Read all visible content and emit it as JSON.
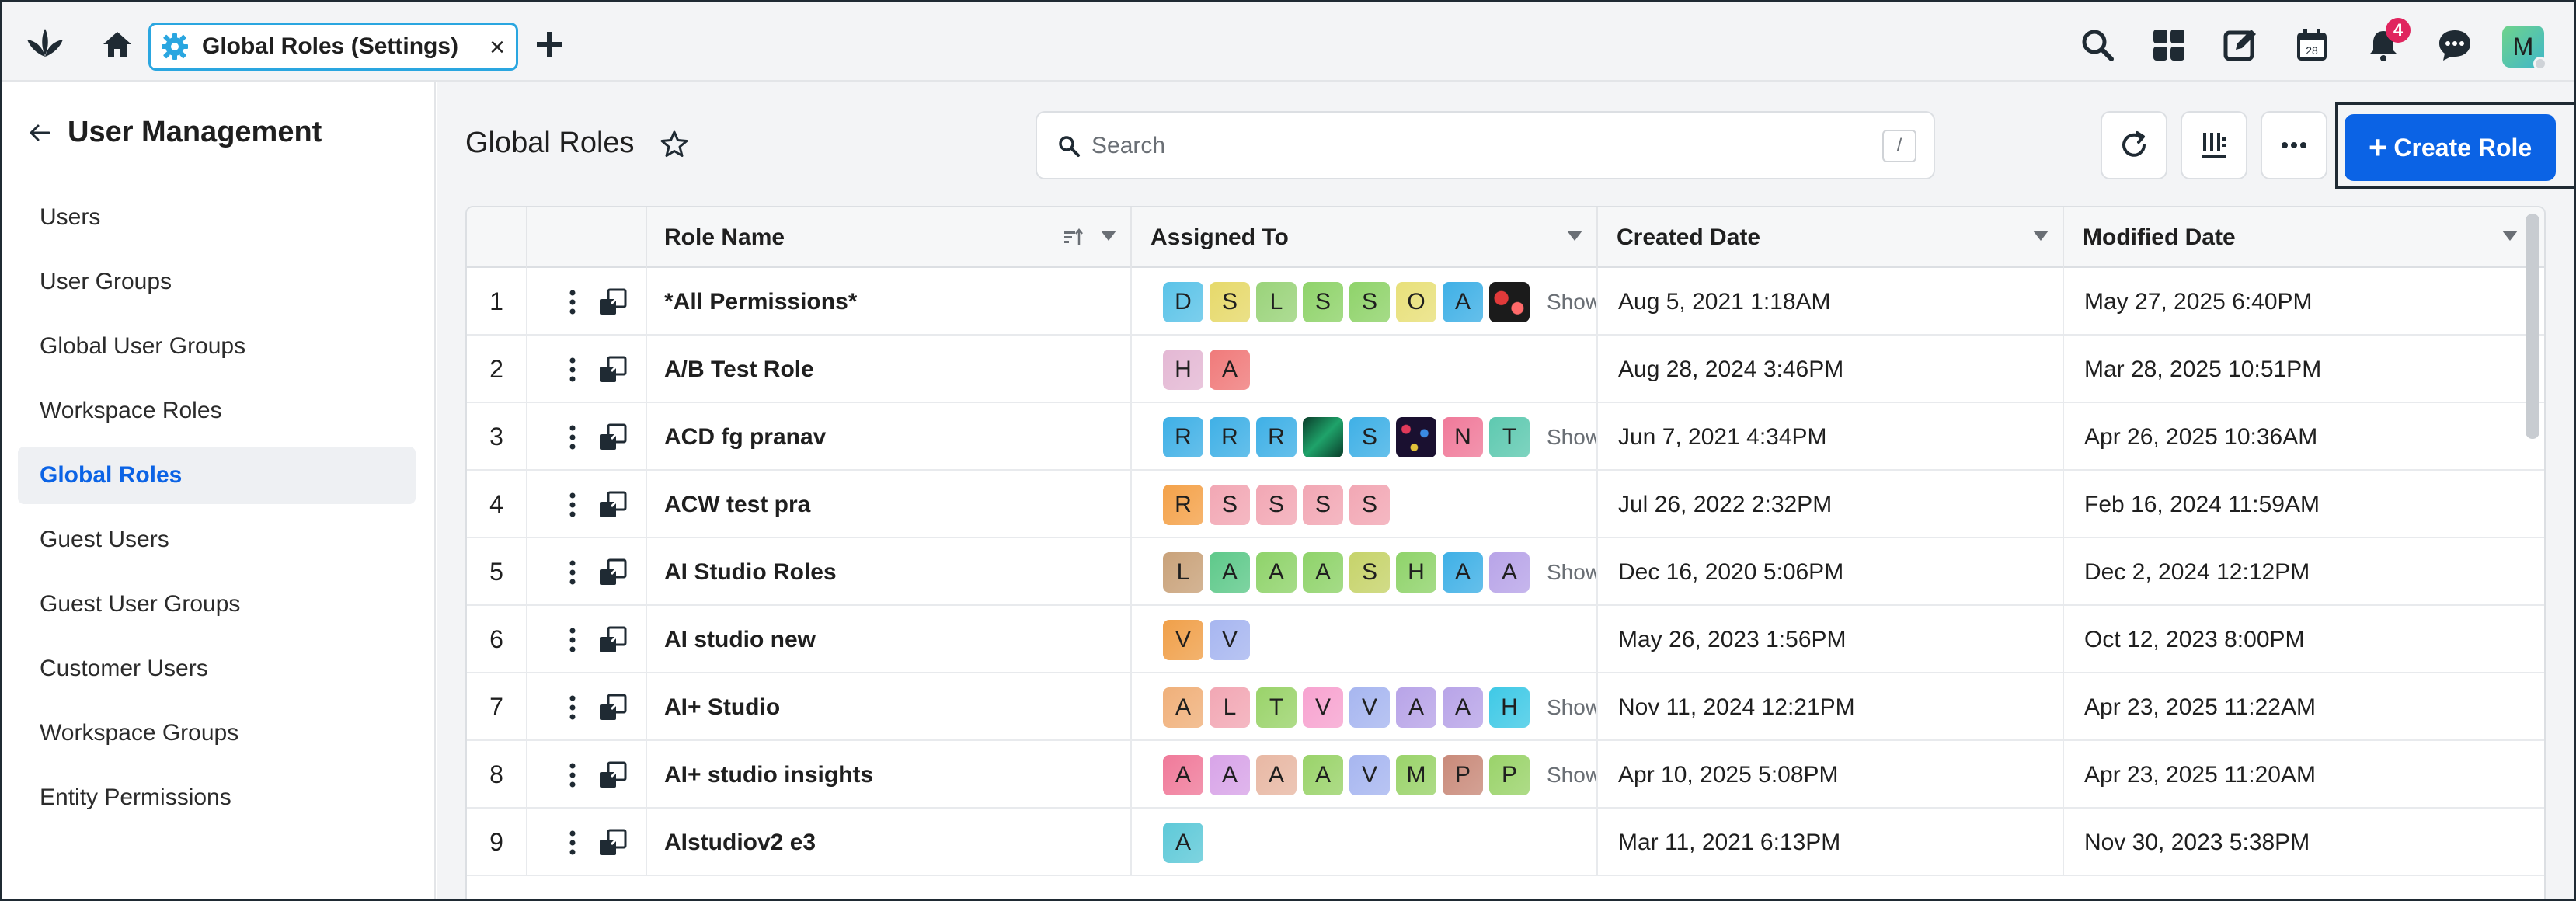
{
  "topbar": {
    "tab_label": "Global Roles (Settings)",
    "tab_close": "×",
    "notification_count": "4",
    "calendar_day": "28",
    "user_initial": "M"
  },
  "sidebar": {
    "title": "User Management",
    "items": [
      {
        "label": "Users",
        "active": false
      },
      {
        "label": "User Groups",
        "active": false
      },
      {
        "label": "Global User Groups",
        "active": false
      },
      {
        "label": "Workspace Roles",
        "active": false
      },
      {
        "label": "Global Roles",
        "active": true
      },
      {
        "label": "Guest Users",
        "active": false
      },
      {
        "label": "Guest User Groups",
        "active": false
      },
      {
        "label": "Customer Users",
        "active": false
      },
      {
        "label": "Workspace Groups",
        "active": false
      },
      {
        "label": "Entity Permissions",
        "active": false
      }
    ]
  },
  "main": {
    "title": "Global Roles",
    "search_placeholder": "Search",
    "search_shortcut": "/",
    "create_label": "Create Role",
    "create_plus": "+"
  },
  "table": {
    "columns": {
      "role_name": "Role Name",
      "assigned_to": "Assigned To",
      "created": "Created Date",
      "modified": "Modified Date"
    },
    "show_more_label": "Show",
    "rows": [
      {
        "num": "1",
        "name": "*All Permissions*",
        "chips": [
          {
            "l": "D",
            "c": "#5bc3e8"
          },
          {
            "l": "S",
            "c": "#e6d96a"
          },
          {
            "l": "L",
            "c": "#9ad37a"
          },
          {
            "l": "S",
            "c": "#8fd36a"
          },
          {
            "l": "S",
            "c": "#8fd36a"
          },
          {
            "l": "O",
            "c": "#e8e07a"
          },
          {
            "l": "A",
            "c": "#3fb0e6"
          },
          {
            "l": "",
            "c": "img-red"
          }
        ],
        "show_more": true,
        "created": "Aug 5, 2021 1:18AM",
        "modified": "May 27, 2025 6:40PM"
      },
      {
        "num": "2",
        "name": "A/B Test Role",
        "chips": [
          {
            "l": "H",
            "c": "#e4b8d4"
          },
          {
            "l": "A",
            "c": "#f07a7a"
          }
        ],
        "show_more": false,
        "created": "Aug 28, 2024 3:46PM",
        "modified": "Mar 28, 2025 10:51PM"
      },
      {
        "num": "3",
        "name": "ACD fg pranav",
        "chips": [
          {
            "l": "R",
            "c": "#3fb0e6"
          },
          {
            "l": "R",
            "c": "#3fb0e6"
          },
          {
            "l": "R",
            "c": "#3fb0e6"
          },
          {
            "l": "",
            "c": "img-green"
          },
          {
            "l": "S",
            "c": "#3fb0e6"
          },
          {
            "l": "",
            "c": "img-dots"
          },
          {
            "l": "N",
            "c": "#f07a9a"
          },
          {
            "l": "T",
            "c": "#5ec9b0"
          }
        ],
        "show_more": true,
        "created": "Jun 7, 2021 4:34PM",
        "modified": "Apr 26, 2025 10:36AM"
      },
      {
        "num": "4",
        "name": "ACW test pra",
        "chips": [
          {
            "l": "R",
            "c": "#f4a24a"
          },
          {
            "l": "S",
            "c": "#f2a7b4"
          },
          {
            "l": "S",
            "c": "#f2a7b4"
          },
          {
            "l": "S",
            "c": "#f2a7b4"
          },
          {
            "l": "S",
            "c": "#f2a7b4"
          }
        ],
        "show_more": false,
        "created": "Jul 26, 2022 2:32PM",
        "modified": "Feb 16, 2024 11:59AM"
      },
      {
        "num": "5",
        "name": "AI Studio Roles",
        "chips": [
          {
            "l": "L",
            "c": "#c9a27a"
          },
          {
            "l": "A",
            "c": "#5ec98a"
          },
          {
            "l": "A",
            "c": "#8fd36a"
          },
          {
            "l": "A",
            "c": "#8fd36a"
          },
          {
            "l": "S",
            "c": "#c6d36a"
          },
          {
            "l": "H",
            "c": "#8fd36a"
          },
          {
            "l": "A",
            "c": "#3fb0e6"
          },
          {
            "l": "A",
            "c": "#b8a4e8"
          }
        ],
        "show_more": true,
        "created": "Dec 16, 2020 5:06PM",
        "modified": "Dec 2, 2024 12:12PM"
      },
      {
        "num": "6",
        "name": "AI studio new",
        "chips": [
          {
            "l": "V",
            "c": "#f0a04a"
          },
          {
            "l": "V",
            "c": "#a7b6f0"
          }
        ],
        "show_more": false,
        "created": "May 26, 2023 1:56PM",
        "modified": "Oct 12, 2023 8:00PM"
      },
      {
        "num": "7",
        "name": "AI+ Studio",
        "chips": [
          {
            "l": "A",
            "c": "#f0b07a"
          },
          {
            "l": "L",
            "c": "#f2a7b4"
          },
          {
            "l": "T",
            "c": "#9ad36a"
          },
          {
            "l": "V",
            "c": "#f7a3d0"
          },
          {
            "l": "V",
            "c": "#a7b6f0"
          },
          {
            "l": "A",
            "c": "#b8a4e8"
          },
          {
            "l": "A",
            "c": "#b8a4e8"
          },
          {
            "l": "H",
            "c": "#3fc9e6"
          }
        ],
        "show_more": true,
        "created": "Nov 11, 2024 12:21PM",
        "modified": "Apr 23, 2025 11:22AM"
      },
      {
        "num": "8",
        "name": "AI+ studio insights",
        "chips": [
          {
            "l": "A",
            "c": "#f07a9a"
          },
          {
            "l": "A",
            "c": "#d8a4e8"
          },
          {
            "l": "A",
            "c": "#e8b8a4"
          },
          {
            "l": "A",
            "c": "#9ad36a"
          },
          {
            "l": "V",
            "c": "#a7b6f0"
          },
          {
            "l": "M",
            "c": "#9ad36a"
          },
          {
            "l": "P",
            "c": "#c98a7a"
          },
          {
            "l": "P",
            "c": "#9ad36a"
          }
        ],
        "show_more": true,
        "created": "Apr 10, 2025 5:08PM",
        "modified": "Apr 23, 2025 11:20AM"
      },
      {
        "num": "9",
        "name": "AIstudiov2 e3",
        "chips": [
          {
            "l": "A",
            "c": "#5ec9d8"
          }
        ],
        "show_more": false,
        "created": "Mar 11, 2021 6:13PM",
        "modified": "Nov 30, 2023 5:38PM"
      }
    ]
  }
}
